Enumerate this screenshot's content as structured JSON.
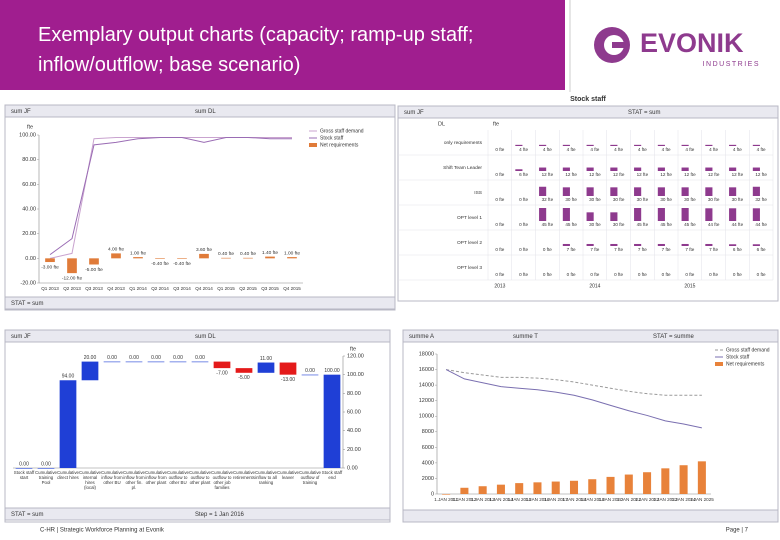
{
  "header": {
    "title": "Exemplary output charts (capacity; ramp-up staff; inflow/outflow; base scenario)",
    "logo": "EVONIK",
    "logo_sub": "INDUSTRIES"
  },
  "footer": {
    "left": "C-HR | Strategic Workforce Planning at Evonik",
    "page": "Page | 7"
  },
  "chart_data": [
    {
      "type": "line",
      "header_texts": [
        "sum JF",
        "sum DL"
      ],
      "unit": "fte",
      "footer_texts": [
        "STAT = sum"
      ],
      "categories": [
        "Q1 2013",
        "Q2 2013",
        "Q3 2013",
        "Q4 2013",
        "Q1 2014",
        "Q2 2014",
        "Q3 2014",
        "Q4 2014",
        "Q1 2015",
        "Q2 2015",
        "Q3 2015",
        "Q4 2015"
      ],
      "series": [
        {
          "name": "Gross staff demand",
          "color": "#c9a3cf",
          "values": [
            0,
            4,
            97,
            98,
            98,
            98,
            98,
            98,
            98,
            98,
            98,
            98
          ]
        },
        {
          "name": "Stock staff",
          "color": "#9a6cb4",
          "values": [
            3,
            16,
            92,
            94,
            97,
            98,
            98,
            94,
            98,
            98,
            97,
            97
          ]
        },
        {
          "name": "Net requirements",
          "color": "#e07b39",
          "mark": "bar",
          "values": [
            -3,
            -12,
            -5,
            4,
            1,
            -0.4,
            -0.4,
            3.6,
            0.4,
            0.4,
            1.4,
            1
          ],
          "value_labels": [
            "-3.00 fte",
            "-12.00 fte",
            "-5.00 fte",
            "4.00 fte",
            "1.00 fte",
            "-0.40 fte",
            "-0.40 fte",
            "3.60 fte",
            "0.40 fte",
            "0.40 fte",
            "1.40 fte",
            "1.00 fte"
          ]
        }
      ],
      "ylim": [
        -20,
        100
      ],
      "yticks": [
        {
          "value": -20,
          "label": "-20.00"
        },
        {
          "value": 0,
          "label": "0.00"
        },
        {
          "value": 20,
          "label": "20.00"
        },
        {
          "value": 40,
          "label": "40.00"
        },
        {
          "value": 60,
          "label": "60.00"
        },
        {
          "value": 80,
          "label": "80.00"
        },
        {
          "value": 100,
          "label": "100.00"
        }
      ],
      "grid": false
    },
    {
      "type": "table",
      "title": "Stock staff",
      "header_texts": [
        "sum JF",
        "STAT = sum"
      ],
      "row_header": "DL",
      "unit": "fte",
      "color": "#8e3a8e",
      "rows": [
        {
          "label": "only requirements",
          "values": [
            0,
            4,
            4,
            4,
            4,
            4,
            4,
            4,
            4,
            4,
            4,
            4
          ],
          "value_labels": [
            "0 fte",
            "4 fte",
            "4 fte",
            "4 fte",
            "4 fte",
            "4 fte",
            "4 fte",
            "4 fte",
            "4 fte",
            "4 fte",
            "4 fte",
            "4 fte"
          ]
        },
        {
          "label": "Shift Team Leader",
          "values": [
            0,
            6,
            12,
            12,
            12,
            12,
            12,
            12,
            12,
            12,
            12,
            12
          ],
          "value_labels": [
            "0 fte",
            "6 fte",
            "12 fte",
            "12 fte",
            "12 fte",
            "12 fte",
            "12 fte",
            "12 fte",
            "12 fte",
            "12 fte",
            "12 fte",
            "12 fte"
          ]
        },
        {
          "label": "ISS",
          "values": [
            0,
            0,
            32,
            30,
            30,
            30,
            30,
            30,
            30,
            30,
            30,
            32
          ],
          "value_labels": [
            "0 fte",
            "0 fte",
            "32 fte",
            "30 fte",
            "30 fte",
            "30 fte",
            "30 fte",
            "30 fte",
            "30 fte",
            "30 fte",
            "30 fte",
            "32 fte"
          ]
        },
        {
          "label": "OPT level 1",
          "values": [
            0,
            0,
            45,
            45,
            30,
            30,
            45,
            45,
            45,
            44,
            44,
            44
          ],
          "value_labels": [
            "0 fte",
            "0 fte",
            "45 fte",
            "45 fte",
            "30 fte",
            "30 fte",
            "45 fte",
            "45 fte",
            "45 fte",
            "44 fte",
            "44 fte",
            "44 fte"
          ]
        },
        {
          "label": "OPT level 2",
          "values": [
            0,
            0,
            0,
            7,
            7,
            7,
            7,
            7,
            7,
            7,
            6,
            6
          ],
          "value_labels": [
            "0 fte",
            "0 fte",
            "0 fte",
            "7 fte",
            "7 fte",
            "7 fte",
            "7 fte",
            "7 fte",
            "7 fte",
            "7 fte",
            "6 fte",
            "6 fte"
          ]
        },
        {
          "label": "OPT level 3",
          "values": [
            0,
            0,
            0,
            0,
            0,
            0,
            0,
            0,
            0,
            0,
            0,
            0
          ],
          "value_labels": [
            "0 fte",
            "0 fte",
            "0 fte",
            "0 fte",
            "0 fte",
            "0 fte",
            "0 fte",
            "0 fte",
            "0 fte",
            "0 fte",
            "0 fte",
            "0 fte"
          ]
        }
      ],
      "years": [
        "2013",
        "2014",
        "2015"
      ]
    },
    {
      "type": "waterfall",
      "header_texts": [
        "sum JF",
        "sum DL"
      ],
      "unit": "fte",
      "footer_texts": [
        "STAT = sum",
        "Step = 1 Jan 2016"
      ],
      "categories": [
        "Stock staff start",
        "Cumulative training Pool",
        "Cumulative direct hires",
        "Cumulative internal hires (local)",
        "Cumulative inflow from other BU",
        "Cumulative inflow from other fin. pl.",
        "Cumulative inflow from other plant",
        "Cumulative outflow to other BU",
        "Cumulative outflow to other plant",
        "Cumulative outflow to other job families",
        "Cumulative retirements",
        "Cumulative inflow to all ranking",
        "Cumulative leaver",
        "Cumulative outflow of training",
        "Stock staff end"
      ],
      "values": [
        0,
        0,
        94,
        20,
        0,
        0,
        0,
        0,
        0,
        -7,
        -5,
        11,
        -13,
        0,
        100
      ],
      "value_labels": [
        "0.00",
        "0.00",
        "94.00",
        "20.00",
        "0.00",
        "0.00",
        "0.00",
        "0.00",
        "0.00",
        "-7.00",
        "-5.00",
        "11.00",
        "-13.00",
        "0.00",
        "100.00"
      ],
      "increase_color": "#1f3fd6",
      "decrease_color": "#e41a1a",
      "total_color": "#1f3fd6",
      "ylim": [
        0,
        120
      ],
      "yticks": [
        {
          "value": 0,
          "label": "0.00"
        },
        {
          "value": 20,
          "label": "20.00"
        },
        {
          "value": 40,
          "label": "40.00"
        },
        {
          "value": 60,
          "label": "60.00"
        },
        {
          "value": 80,
          "label": "80.00"
        },
        {
          "value": 100,
          "label": "100.00"
        },
        {
          "value": 120,
          "label": "120.00"
        }
      ]
    },
    {
      "type": "line",
      "header_texts": [
        "summe A",
        "summe T",
        "STAT = summe"
      ],
      "categories": [
        "1.JAN 2011",
        "1.JAN 2012",
        "1.JAN 2013",
        "1.JAN 2014",
        "1.JAN 2015",
        "1.JAN 2016",
        "1.JAN 2017",
        "1.JAN 2018",
        "1.JAN 2019",
        "1.JAN 2020",
        "1.JAN 2021",
        "1.JAN 2022",
        "1.JAN 2023",
        "1.JAN 2024",
        "1.JAN 2025"
      ],
      "series": [
        {
          "name": "Gross staff demand",
          "color": "#9a9a9a",
          "dashed": true,
          "values": [
            16000,
            15600,
            15300,
            15000,
            15000,
            14900,
            14700,
            14400,
            14000,
            13600,
            13200,
            12900,
            12700,
            12700,
            12700
          ]
        },
        {
          "name": "Stock staff",
          "color": "#7a6fb0",
          "values": [
            16000,
            14800,
            14300,
            13800,
            13600,
            13400,
            13100,
            12700,
            12100,
            11400,
            10700,
            10100,
            9400,
            9000,
            8500
          ]
        },
        {
          "name": "Net requirements",
          "color": "#e8823a",
          "mark": "bar",
          "values": [
            0,
            800,
            1000,
            1200,
            1400,
            1500,
            1600,
            1700,
            1900,
            2200,
            2500,
            2800,
            3300,
            3700,
            4200
          ]
        }
      ],
      "ylim": [
        0,
        18000
      ],
      "yticks": [
        0,
        2000,
        4000,
        6000,
        8000,
        10000,
        12000,
        14000,
        16000,
        18000
      ],
      "grid": false
    }
  ]
}
